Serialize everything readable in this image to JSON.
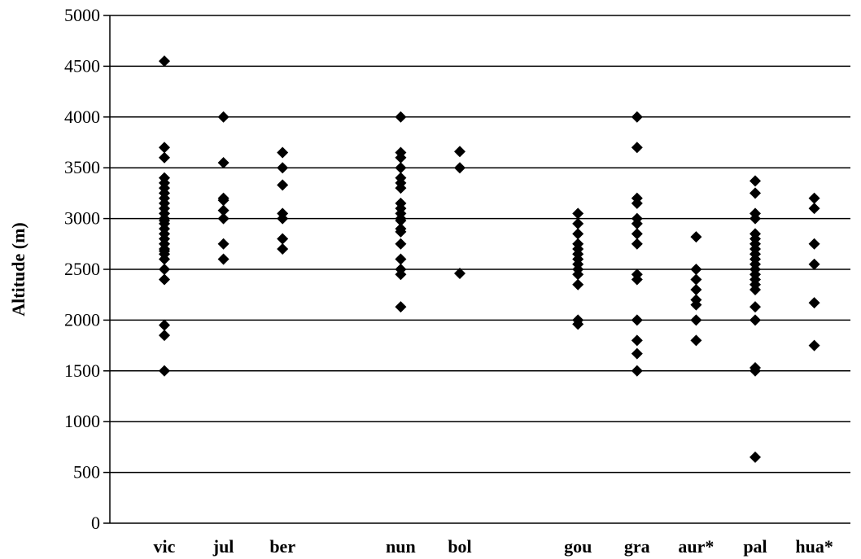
{
  "chart_data": {
    "type": "scatter",
    "title": "",
    "xlabel": "",
    "ylabel": "Altitude (m)",
    "ylim": [
      0,
      5000
    ],
    "ytick_step": 500,
    "yticks": [
      "0",
      "500",
      "1000",
      "1500",
      "2000",
      "2500",
      "3000",
      "3500",
      "4000",
      "4500",
      "5000"
    ],
    "grid": "horizontal",
    "marker": "diamond",
    "marker_color": "#000000",
    "categories": [
      {
        "label": "vic",
        "slot": 1,
        "values": [
          4550,
          3700,
          3600,
          3400,
          3350,
          3300,
          3250,
          3200,
          3150,
          3100,
          3050,
          3000,
          2980,
          2950,
          2900,
          2850,
          2800,
          2750,
          2700,
          2680,
          2650,
          2600,
          2500,
          2400,
          1950,
          1850,
          1500
        ]
      },
      {
        "label": "jul",
        "slot": 2,
        "values": [
          4000,
          3550,
          3200,
          3180,
          3080,
          3000,
          2750,
          2600
        ]
      },
      {
        "label": "ber",
        "slot": 3,
        "values": [
          3650,
          3500,
          3330,
          3050,
          3000,
          2800,
          2700
        ]
      },
      {
        "label": "nun",
        "slot": 5,
        "values": [
          4000,
          3650,
          3600,
          3500,
          3400,
          3350,
          3300,
          3150,
          3100,
          3050,
          3000,
          2980,
          2900,
          2870,
          2750,
          2600,
          2500,
          2450,
          2130
        ]
      },
      {
        "label": "bol",
        "slot": 6,
        "values": [
          3660,
          3500,
          2460
        ]
      },
      {
        "label": "gou",
        "slot": 8,
        "values": [
          3050,
          2950,
          2850,
          2750,
          2700,
          2650,
          2600,
          2550,
          2500,
          2450,
          2350,
          2000,
          1960
        ]
      },
      {
        "label": "gra",
        "slot": 9,
        "values": [
          4000,
          3700,
          3200,
          3150,
          3000,
          2950,
          2850,
          2750,
          2450,
          2400,
          2000,
          1800,
          1670,
          1500
        ]
      },
      {
        "label": "aur*",
        "slot": 10,
        "values": [
          2820,
          2500,
          2400,
          2300,
          2200,
          2150,
          2000,
          1800
        ]
      },
      {
        "label": "pal",
        "slot": 11,
        "values": [
          3370,
          3250,
          3050,
          3000,
          2850,
          2800,
          2750,
          2700,
          2650,
          2600,
          2550,
          2500,
          2450,
          2400,
          2350,
          2300,
          2130,
          2000,
          1530,
          1500,
          650
        ]
      },
      {
        "label": "hua*",
        "slot": 12,
        "values": [
          3200,
          3100,
          2750,
          2550,
          2170,
          1750
        ]
      }
    ]
  }
}
